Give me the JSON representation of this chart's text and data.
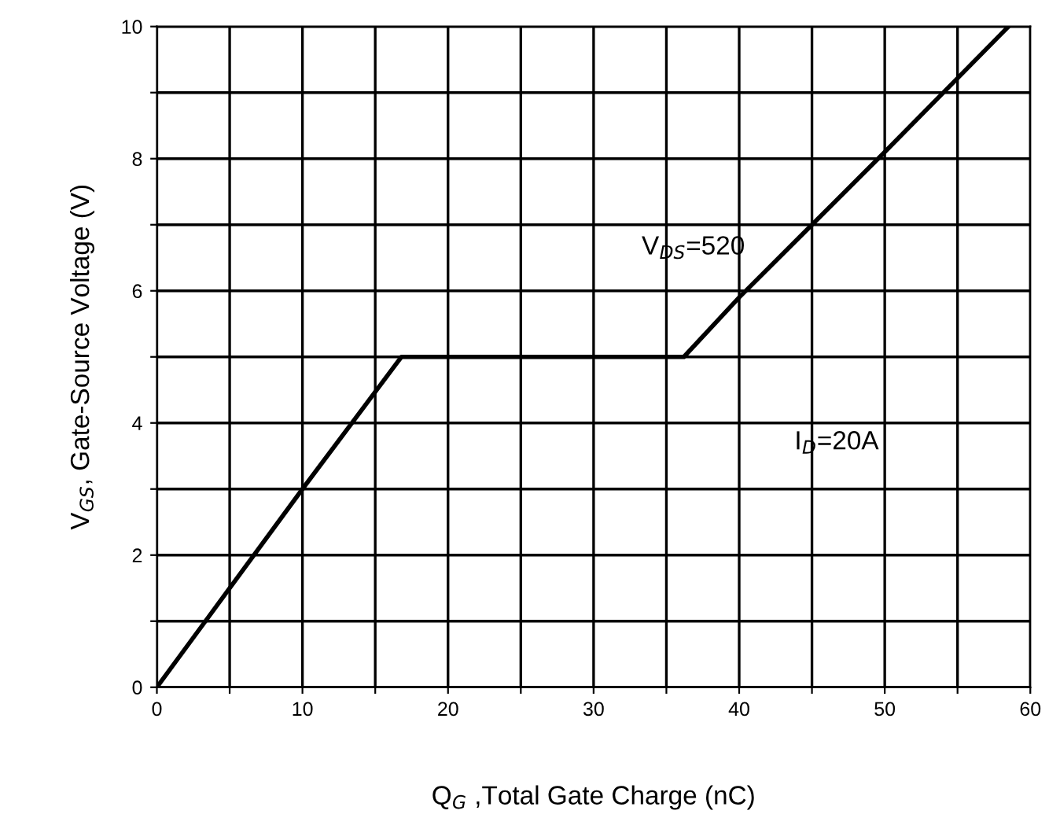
{
  "chart_data": {
    "type": "line",
    "xlabel": "Q$_{G}$ ,Total Gate Charge (nC)",
    "ylabel": "V$_{GS}$, Gate-Source Voltage (V)",
    "x": [
      0,
      10,
      16.8,
      36.2,
      40,
      50,
      58.5
    ],
    "series": [
      {
        "color": "#000000",
        "values": [
          0,
          3,
          5,
          5,
          5.9,
          8.1,
          10
        ]
      }
    ],
    "xlim": [
      0,
      60
    ],
    "ylim": [
      0,
      10
    ],
    "xticks": [
      0,
      {
        "value": 5,
        "label": null
      },
      10,
      {
        "value": 15,
        "label": null
      },
      20,
      {
        "value": 25,
        "label": null
      },
      30,
      {
        "value": 35,
        "label": null
      },
      40,
      {
        "value": 45,
        "label": null
      },
      50,
      {
        "value": 55,
        "label": null
      },
      60
    ],
    "yticks": [
      0,
      {
        "value": 1,
        "label": null
      },
      2,
      {
        "value": 3,
        "label": null
      },
      4,
      {
        "value": 5,
        "label": null
      },
      6,
      {
        "value": 7,
        "label": null
      },
      8,
      {
        "value": 9,
        "label": null
      },
      10
    ],
    "grid": true,
    "legend": false,
    "marker": "none",
    "line_style": "solid",
    "annotations": [
      "V$_{DS}$=520",
      "I$_{D}$=20A"
    ]
  }
}
